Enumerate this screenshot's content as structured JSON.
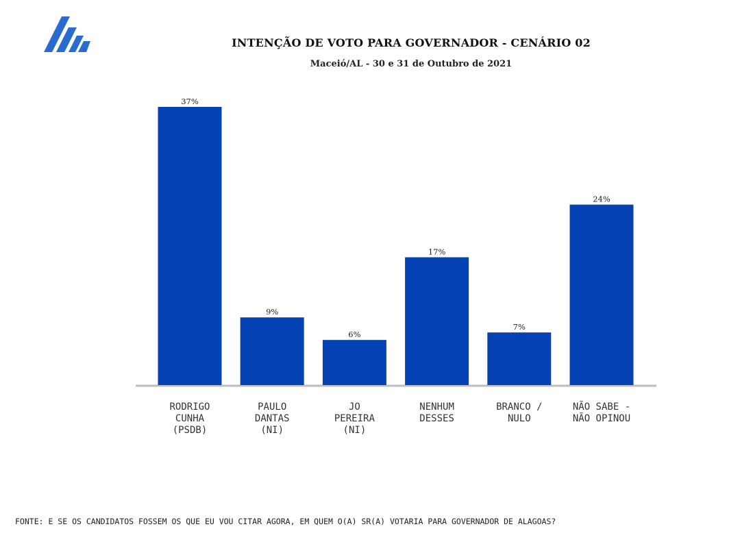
{
  "colors": {
    "bar": "#0542b3",
    "axis": "#bdbdbd",
    "logo": "#2a6bcf"
  },
  "logo": {
    "icon": "building-logo-icon"
  },
  "header": {
    "title": "INTENÇÃO DE VOTO PARA GOVERNADOR - CENÁRIO 02",
    "subtitle": "Maceió/AL - 30 e 31 de Outubro de 2021"
  },
  "chart_data": {
    "type": "bar",
    "title": "INTENÇÃO DE VOTO PARA GOVERNADOR - CENÁRIO 02",
    "subtitle": "Maceió/AL - 30 e 31 de Outubro de 2021",
    "categories": [
      "RODRIGO\nCUNHA\n(PSDB)",
      "PAULO\nDANTAS\n(NI)",
      "JO\nPEREIRA\n(NI)",
      "NENHUM\nDESSES",
      "BRANCO /\nNULO",
      "NÃO SABE  -\nNÃO OPINOU"
    ],
    "values": [
      37,
      9,
      6,
      17,
      7,
      24
    ],
    "value_labels": [
      "37%",
      "9%",
      "6%",
      "17%",
      "7%",
      "24%"
    ],
    "unit": "%",
    "xlabel": "",
    "ylabel": "",
    "ylim": [
      0,
      37
    ],
    "grid": false
  },
  "footer": {
    "source": "FONTE: E SE OS CANDIDATOS FOSSEM OS QUE EU VOU CITAR AGORA, EM QUEM O(A) SR(A) VOTARIA PARA GOVERNADOR DE ALAGOAS?"
  }
}
